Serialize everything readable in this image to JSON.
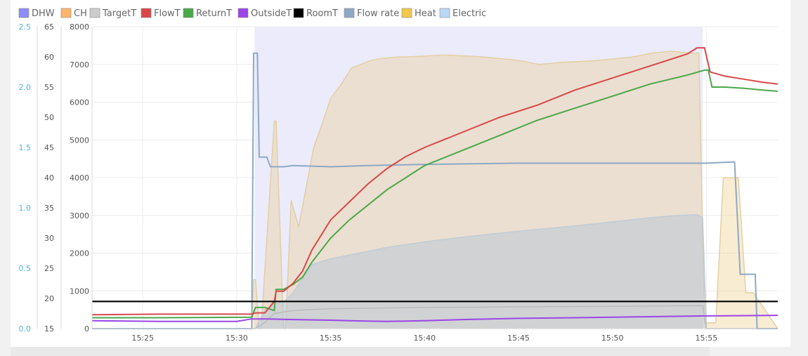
{
  "chart_data": {
    "type": "line",
    "legend": [
      {
        "name": "DHW",
        "color": "#8c8cff"
      },
      {
        "name": "CH",
        "color": "#ffb56b"
      },
      {
        "name": "TargetT",
        "color": "#cccccc"
      },
      {
        "name": "FlowT",
        "color": "#d94848"
      },
      {
        "name": "ReturnT",
        "color": "#4aa84a"
      },
      {
        "name": "OutsideT",
        "color": "#9b45e8"
      },
      {
        "name": "RoomT",
        "color": "#000000"
      },
      {
        "name": "Flow rate",
        "color": "#8ea9c4"
      },
      {
        "name": "Heat",
        "color": "#f2c84b"
      },
      {
        "name": "Electric",
        "color": "#b8d8f5"
      }
    ],
    "x_ticks": [
      "15:25",
      "15:30",
      "15:35",
      "15:40",
      "15:45",
      "15:50",
      "15:55"
    ],
    "x_range_minutes": [
      22.3,
      58.8
    ],
    "y_flowrate": {
      "ticks": [
        "0.0",
        "0.5",
        "1.0",
        "1.5",
        "2.0",
        "2.5"
      ],
      "range": [
        0,
        2.5
      ],
      "color": "#4fb3d9"
    },
    "y_temperature": {
      "ticks": [
        "15",
        "20",
        "25",
        "30",
        "35",
        "40",
        "45",
        "50",
        "55",
        "60",
        "65"
      ],
      "range": [
        15,
        65
      ]
    },
    "y_power": {
      "ticks": [
        "0",
        "1000",
        "2000",
        "3000",
        "4000",
        "5000",
        "6000",
        "7000",
        "8000"
      ],
      "range": [
        0,
        8000
      ]
    },
    "series": [
      {
        "name": "DHW",
        "kind": "band",
        "axis": "power",
        "x": [
          30.95,
          54.8
        ],
        "y": [
          8000,
          8000
        ]
      },
      {
        "name": "Heat",
        "kind": "area",
        "axis": "power",
        "x": [
          22.3,
          30.8,
          30.9,
          31.0,
          31.2,
          31.3,
          32.0,
          32.1,
          32.5,
          32.6,
          32.9,
          33.3,
          34.1,
          34.6,
          35.0,
          35.6,
          36.1,
          37.1,
          37.6,
          38.6,
          39.1,
          41.1,
          43.1,
          45.1,
          46.1,
          47.1,
          49.1,
          51.1,
          52.1,
          53.1,
          53.6,
          54.1,
          54.6,
          54.9,
          55.1,
          55.5,
          55.9,
          56.7,
          57.1,
          57.5,
          58.8
        ],
        "y": [
          0,
          0,
          1300,
          1300,
          0,
          0,
          5500,
          5500,
          0,
          0,
          3400,
          2700,
          4800,
          5500,
          6100,
          6500,
          6900,
          7100,
          7150,
          7200,
          7200,
          7250,
          7200,
          7100,
          7000,
          7050,
          7100,
          7200,
          7300,
          7350,
          7330,
          7300,
          7300,
          150,
          150,
          150,
          4000,
          4000,
          950,
          950,
          0
        ]
      },
      {
        "name": "Electric",
        "kind": "area",
        "axis": "power",
        "x": [
          22.3,
          30.8,
          31.0,
          31.5,
          32.0,
          32.5,
          33.0,
          34.0,
          35.0,
          36.0,
          38.0,
          40.0,
          42.0,
          44.0,
          46.0,
          48.0,
          50.0,
          52.0,
          53.5,
          54.5,
          54.8,
          55.0,
          58.8
        ],
        "y": [
          0,
          0,
          0,
          500,
          650,
          700,
          950,
          1700,
          1850,
          1950,
          2150,
          2300,
          2420,
          2530,
          2630,
          2720,
          2830,
          2940,
          3000,
          3020,
          2950,
          0,
          0
        ]
      },
      {
        "name": "Flow rate",
        "kind": "line",
        "axis": "flowrate",
        "x": [
          22.3,
          30.8,
          30.9,
          31.1,
          31.2,
          31.6,
          31.8,
          32.5,
          33.0,
          35.0,
          37.0,
          40.0,
          45.0,
          50.0,
          55.0,
          56.5,
          56.8,
          57.6,
          57.7,
          58.8
        ],
        "y": [
          0.0,
          0.0,
          2.28,
          2.28,
          1.42,
          1.42,
          1.34,
          1.34,
          1.35,
          1.34,
          1.35,
          1.36,
          1.37,
          1.37,
          1.37,
          1.38,
          0.45,
          0.45,
          0.0,
          0.0
        ]
      },
      {
        "name": "FlowT",
        "kind": "line",
        "axis": "temp",
        "x": [
          22.3,
          26.0,
          30.8,
          31.0,
          31.5,
          32.0,
          32.1,
          32.5,
          33.0,
          33.5,
          34.0,
          35.0,
          36.0,
          37.0,
          38.0,
          39.0,
          40.0,
          42.0,
          44.0,
          46.0,
          48.0,
          50.0,
          52.0,
          54.0,
          54.5,
          54.9,
          55.2,
          56.0,
          57.0,
          58.0,
          58.8
        ],
        "y": [
          17.3,
          17.4,
          17.4,
          17.6,
          17.6,
          19.5,
          21.2,
          21.2,
          22.5,
          24.5,
          28.0,
          33.0,
          36.0,
          39.0,
          41.5,
          43.5,
          45.0,
          47.5,
          50.0,
          52.0,
          54.5,
          56.5,
          58.5,
          60.5,
          61.5,
          61.5,
          57.5,
          56.8,
          56.3,
          55.8,
          55.5
        ]
      },
      {
        "name": "ReturnT",
        "kind": "line",
        "axis": "temp",
        "x": [
          22.3,
          26.0,
          30.8,
          31.0,
          31.5,
          32.0,
          32.1,
          32.5,
          33.0,
          33.5,
          34.0,
          35.0,
          36.0,
          37.0,
          38.0,
          39.0,
          40.0,
          42.0,
          44.0,
          46.0,
          48.0,
          50.0,
          52.0,
          54.0,
          54.9,
          55.1,
          55.3,
          56.0,
          57.0,
          58.0,
          58.8
        ],
        "y": [
          16.8,
          16.8,
          16.9,
          18.5,
          18.5,
          18.0,
          21.5,
          21.5,
          22.3,
          23.5,
          26.0,
          30.0,
          33.0,
          35.5,
          38.0,
          40.0,
          42.0,
          44.5,
          47.0,
          49.5,
          51.5,
          53.5,
          55.5,
          57.0,
          57.8,
          57.8,
          55.0,
          55.0,
          54.8,
          54.5,
          54.3
        ]
      },
      {
        "name": "TargetT",
        "kind": "line",
        "axis": "temp",
        "x": [
          22.3,
          30.8,
          31.0,
          31.5,
          32.0,
          33.0,
          35.0,
          40.0,
          45.0,
          50.0,
          54.8,
          55.0,
          58.8
        ],
        "y": [
          15.0,
          15.0,
          15.0,
          16.0,
          17.5,
          18.0,
          18.3,
          18.5,
          18.6,
          18.7,
          18.8,
          15.0,
          15.0
        ]
      },
      {
        "name": "OutsideT",
        "kind": "line",
        "axis": "temp",
        "x": [
          22.3,
          26.0,
          30.0,
          30.8,
          31.5,
          33.0,
          35.0,
          36.0,
          38.0,
          40.0,
          42.0,
          45.0,
          48.0,
          50.0,
          55.0,
          58.8
        ],
        "y": [
          16.3,
          16.2,
          16.2,
          16.6,
          16.6,
          16.5,
          16.4,
          16.3,
          16.2,
          16.3,
          16.5,
          16.7,
          16.8,
          16.9,
          17.1,
          17.2
        ]
      },
      {
        "name": "RoomT",
        "kind": "line",
        "axis": "temp",
        "x": [
          22.3,
          58.8
        ],
        "y": [
          19.5,
          19.5
        ]
      }
    ]
  }
}
